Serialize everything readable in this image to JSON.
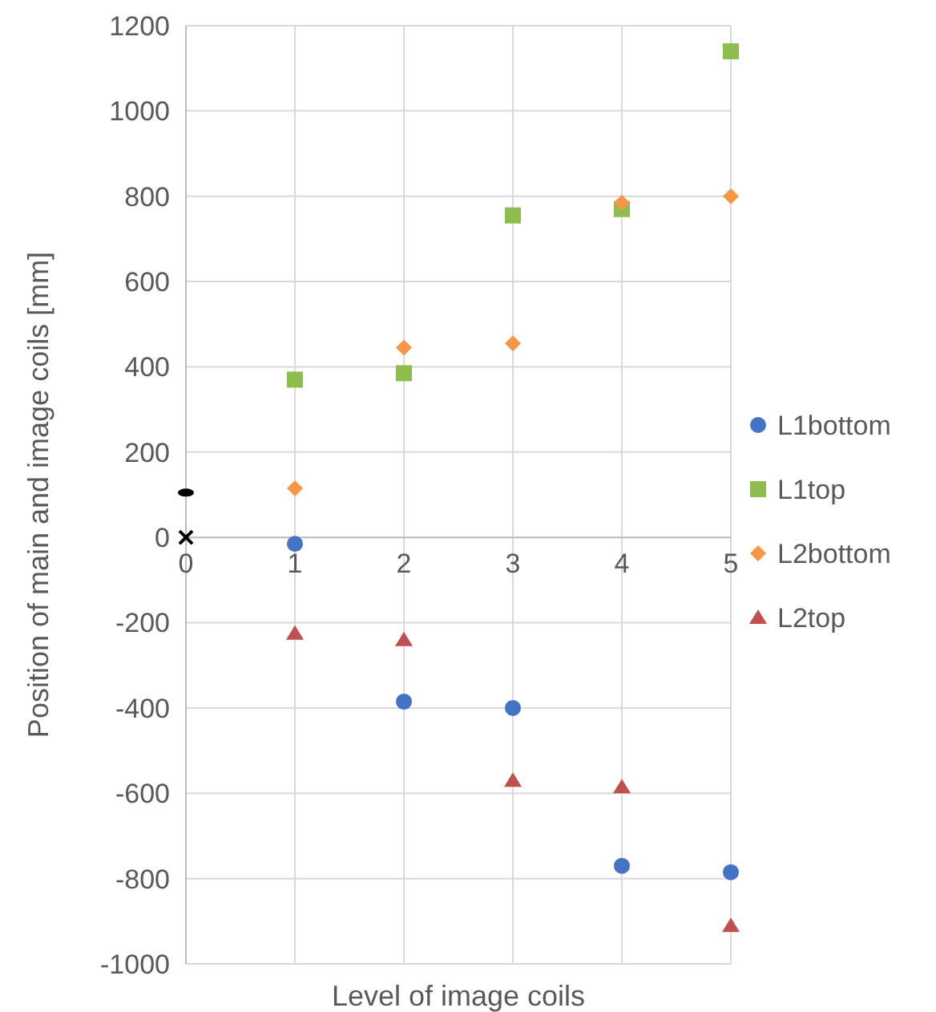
{
  "chart_data": {
    "type": "scatter",
    "xlabel": "Level of image coils",
    "ylabel": "Position of main and image coils [mm]",
    "xlim": [
      0,
      5
    ],
    "xticks": [
      0,
      1,
      2,
      3,
      4,
      5
    ],
    "ylim": [
      -1000,
      1200
    ],
    "yticks": [
      -1000,
      -800,
      -600,
      -400,
      -200,
      0,
      200,
      400,
      600,
      800,
      1000,
      1200
    ],
    "grid": true,
    "legend": "right",
    "series": [
      {
        "name": "L1bottom",
        "color": "#4472c4",
        "marker": "circle",
        "x": [
          1,
          2,
          3,
          4,
          5
        ],
        "values": [
          -15,
          -385,
          -400,
          -770,
          -785
        ]
      },
      {
        "name": "L1top",
        "color": "#8fbc4e",
        "marker": "square",
        "x": [
          1,
          2,
          3,
          4,
          5
        ],
        "values": [
          370,
          385,
          755,
          770,
          1140
        ]
      },
      {
        "name": "L2bottom",
        "color": "#f79646",
        "marker": "diamond",
        "x": [
          1,
          2,
          3,
          4,
          5
        ],
        "values": [
          115,
          445,
          455,
          785,
          800
        ]
      },
      {
        "name": "L2top",
        "color": "#c0504d",
        "marker": "triangle",
        "x": [
          1,
          2,
          3,
          4,
          5
        ],
        "values": [
          -225,
          -240,
          -570,
          -585,
          -910
        ]
      },
      {
        "color": "#000000",
        "x": [
          0
        ],
        "values": [
          105
        ]
      },
      {
        "color": "#000000",
        "marker": "cross",
        "x": [
          0
        ],
        "values": [
          0
        ]
      }
    ]
  }
}
